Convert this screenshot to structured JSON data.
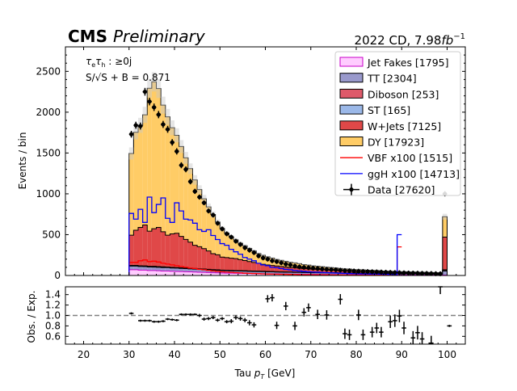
{
  "header": {
    "experiment": "CMS",
    "status": "Preliminary",
    "lumi_prefix": "2022 CD, 7.98",
    "lumi_unit": "fb",
    "lumi_exp": "−1"
  },
  "annotations": {
    "channel": "τ",
    "channel_sub": "e",
    "channel_mid": "τ",
    "channel_sub2": "h",
    "channel_rest": " : ≥0j",
    "significance": "S/√S + B = 0.871"
  },
  "chart_data": [
    {
      "type": "bar",
      "stacked": true,
      "xlabel": "Tau p_T [GeV]",
      "ylabel": "Events / bin",
      "xlim": [
        16,
        104
      ],
      "ylim": [
        0,
        2800
      ],
      "xticks": [
        20,
        30,
        40,
        50,
        60,
        70,
        80,
        90,
        100
      ],
      "yticks": [
        0,
        500,
        1000,
        1500,
        2000,
        2500
      ],
      "bin_edges": [
        20,
        21,
        22,
        23,
        24,
        25,
        26,
        27,
        28,
        29,
        30,
        31,
        32,
        33,
        34,
        35,
        36,
        37,
        38,
        39,
        40,
        41,
        42,
        43,
        44,
        45,
        46,
        47,
        48,
        49,
        50,
        51,
        52,
        53,
        54,
        55,
        56,
        57,
        58,
        59,
        60,
        61,
        62,
        63,
        64,
        65,
        66,
        67,
        68,
        69,
        70,
        71,
        72,
        73,
        74,
        75,
        76,
        77,
        78,
        79,
        80,
        81,
        82,
        83,
        84,
        85,
        86,
        87,
        88,
        89,
        90,
        91,
        92,
        93,
        94,
        95,
        96,
        97,
        98,
        99,
        100
      ],
      "legend_position": "top-right",
      "series": [
        {
          "name": "Jet Fakes",
          "count": "1795",
          "color": "#ffccff",
          "stroke": "#c800c8",
          "values": [
            0,
            0,
            0,
            0,
            0,
            0,
            0,
            0,
            0,
            0,
            70,
            70,
            65,
            65,
            60,
            60,
            58,
            55,
            55,
            52,
            50,
            48,
            46,
            44,
            42,
            40,
            38,
            36,
            34,
            32,
            30,
            29,
            28,
            27,
            26,
            25,
            24,
            23,
            22,
            21,
            20,
            19,
            18,
            17,
            16,
            16,
            15,
            15,
            14,
            14,
            13,
            13,
            12,
            12,
            11,
            11,
            10,
            10,
            10,
            9,
            9,
            9,
            8,
            8,
            8,
            7,
            7,
            7,
            7,
            6,
            6,
            6,
            6,
            5,
            5,
            5,
            5,
            5,
            5,
            5
          ]
        },
        {
          "name": "TT",
          "count": "2304",
          "color": "#9999cc",
          "stroke": "#000000",
          "values": [
            0,
            0,
            0,
            0,
            0,
            0,
            0,
            0,
            0,
            0,
            45,
            45,
            45,
            44,
            44,
            43,
            42,
            42,
            41,
            40,
            40,
            39,
            38,
            37,
            36,
            35,
            34,
            33,
            32,
            31,
            30,
            30,
            29,
            29,
            28,
            28,
            27,
            27,
            26,
            26,
            25,
            25,
            24,
            24,
            23,
            23,
            22,
            22,
            22,
            21,
            21,
            20,
            20,
            20,
            19,
            19,
            18,
            18,
            18,
            17,
            17,
            17,
            16,
            16,
            16,
            15,
            15,
            15,
            14,
            14,
            14,
            13,
            13,
            13,
            12,
            12,
            12,
            11,
            11,
            50
          ]
        },
        {
          "name": "Diboson",
          "count": "253",
          "color": "#de5a6a",
          "stroke": "#000000",
          "values": [
            0,
            0,
            0,
            0,
            0,
            0,
            0,
            0,
            0,
            0,
            5,
            5,
            5,
            5,
            5,
            5,
            5,
            5,
            4,
            4,
            4,
            4,
            4,
            4,
            4,
            4,
            4,
            3,
            3,
            3,
            3,
            3,
            3,
            3,
            3,
            3,
            3,
            3,
            3,
            3,
            2,
            2,
            2,
            2,
            2,
            2,
            2,
            2,
            2,
            2,
            2,
            2,
            2,
            2,
            2,
            2,
            2,
            2,
            2,
            2,
            2,
            2,
            2,
            2,
            2,
            1,
            1,
            1,
            1,
            1,
            1,
            1,
            1,
            1,
            1,
            1,
            1,
            1,
            1,
            10
          ]
        },
        {
          "name": "ST",
          "count": "165",
          "color": "#9bb8e8",
          "stroke": "#000000",
          "values": [
            0,
            0,
            0,
            0,
            0,
            0,
            0,
            0,
            0,
            0,
            4,
            4,
            4,
            4,
            4,
            4,
            4,
            4,
            3,
            3,
            3,
            3,
            3,
            3,
            3,
            3,
            3,
            3,
            3,
            3,
            2,
            2,
            2,
            2,
            2,
            2,
            2,
            2,
            2,
            2,
            2,
            2,
            2,
            2,
            2,
            1,
            1,
            1,
            1,
            1,
            1,
            1,
            1,
            1,
            1,
            1,
            1,
            1,
            1,
            1,
            1,
            1,
            1,
            1,
            1,
            1,
            1,
            1,
            1,
            1,
            1,
            1,
            1,
            1,
            1,
            1,
            1,
            1,
            1,
            5
          ]
        },
        {
          "name": "W+Jets",
          "count": "7125",
          "color": "#e04848",
          "stroke": "#000000",
          "values": [
            0,
            0,
            0,
            0,
            0,
            0,
            0,
            0,
            0,
            0,
            370,
            430,
            470,
            500,
            430,
            460,
            480,
            430,
            390,
            410,
            420,
            385,
            350,
            320,
            285,
            270,
            250,
            225,
            195,
            185,
            160,
            155,
            150,
            145,
            135,
            125,
            115,
            105,
            95,
            85,
            80,
            75,
            70,
            65,
            60,
            55,
            55,
            50,
            45,
            45,
            40,
            40,
            38,
            35,
            33,
            30,
            28,
            26,
            25,
            23,
            22,
            21,
            20,
            19,
            18,
            17,
            16,
            15,
            15,
            14,
            14,
            13,
            12,
            12,
            11,
            11,
            10,
            10,
            10,
            400
          ]
        },
        {
          "name": "DY",
          "count": "17923",
          "color": "#ffcc66",
          "stroke": "#000000",
          "values": [
            0,
            0,
            0,
            0,
            0,
            0,
            0,
            0,
            0,
            0,
            1000,
            1200,
            1250,
            1350,
            1750,
            1800,
            1700,
            1550,
            1450,
            1300,
            1200,
            1100,
            1000,
            900,
            800,
            700,
            610,
            540,
            480,
            400,
            350,
            300,
            260,
            230,
            200,
            180,
            160,
            140,
            120,
            110,
            100,
            90,
            80,
            75,
            70,
            65,
            60,
            55,
            50,
            45,
            40,
            38,
            35,
            32,
            30,
            28,
            26,
            24,
            22,
            20,
            19,
            18,
            17,
            16,
            15,
            14,
            13,
            12,
            11,
            10,
            10,
            9,
            9,
            8,
            8,
            7,
            7,
            6,
            6,
            250
          ]
        },
        {
          "name": "VBF x100",
          "count": "1515",
          "color": "#ff0000",
          "line": true
        },
        {
          "name": "ggH x100",
          "count": "14713",
          "color": "#0000ff",
          "line": true
        },
        {
          "name": "Data",
          "count": "27620",
          "color": "#000000",
          "points": true
        }
      ],
      "data_points": {
        "x": [
          30.5,
          31.5,
          32.5,
          33.5,
          34.5,
          35.5,
          36.5,
          37.5,
          38.5,
          39.5,
          40.5,
          41.5,
          42.5,
          43.5,
          44.5,
          45.5,
          46.5,
          47.5,
          48.5,
          49.5,
          50.5,
          51.5,
          52.5,
          53.5,
          54.5,
          55.5,
          56.5,
          57.5,
          58.5,
          59.5,
          60.5,
          61.5,
          62.5,
          63.5,
          64.5,
          65.5,
          66.5,
          67.5,
          68.5,
          69.5,
          70.5,
          71.5,
          72.5,
          73.5,
          74.5,
          75.5,
          76.5,
          77.5,
          78.5,
          79.5,
          80.5,
          81.5,
          82.5,
          83.5,
          84.5,
          85.5,
          86.5,
          87.5,
          88.5,
          89.5,
          90.5,
          91.5,
          92.5,
          93.5,
          94.5,
          95.5,
          96.5,
          97.5,
          98.5,
          99.5
        ],
        "y": [
          1730,
          1840,
          1830,
          2250,
          2130,
          2060,
          1970,
          1850,
          1790,
          1630,
          1520,
          1350,
          1300,
          1150,
          1030,
          960,
          890,
          790,
          740,
          640,
          570,
          510,
          470,
          420,
          380,
          340,
          310,
          280,
          240,
          215,
          200,
          180,
          170,
          155,
          140,
          130,
          115,
          105,
          100,
          95,
          90,
          85,
          80,
          75,
          72,
          70,
          65,
          60,
          58,
          55,
          52,
          50,
          48,
          46,
          44,
          42,
          40,
          38,
          36,
          34,
          32,
          30,
          29,
          28,
          26,
          25,
          24,
          22,
          21,
          1000
        ]
      },
      "signal_vbf": [
        0,
        0,
        0,
        0,
        0,
        0,
        0,
        0,
        0,
        0,
        160,
        160,
        180,
        190,
        170,
        175,
        165,
        150,
        140,
        130,
        120,
        110,
        100,
        90,
        85,
        75,
        70,
        62,
        55,
        50,
        45,
        42,
        38,
        35,
        32,
        28,
        26,
        24,
        22,
        20,
        18,
        17,
        16,
        15,
        14,
        13,
        12,
        11,
        10,
        10,
        9,
        9,
        8,
        8,
        7,
        7,
        7,
        6,
        6,
        6,
        5,
        5,
        5,
        5,
        4,
        4,
        4,
        4,
        4,
        350
      ],
      "signal_ggh": [
        0,
        0,
        0,
        0,
        0,
        0,
        0,
        0,
        0,
        0,
        760,
        690,
        810,
        650,
        960,
        770,
        870,
        950,
        700,
        650,
        890,
        790,
        690,
        680,
        640,
        560,
        540,
        560,
        490,
        440,
        390,
        370,
        320,
        290,
        260,
        220,
        200,
        180,
        150,
        130,
        120,
        100,
        95,
        85,
        75,
        70,
        60,
        55,
        50,
        45,
        42,
        40,
        37,
        35,
        32,
        30,
        28,
        26,
        24,
        22,
        21,
        20,
        19,
        18,
        17,
        16,
        15,
        14,
        13,
        500
      ],
      "uncertainty_frac": 0.05
    },
    {
      "type": "scatter",
      "xlabel": "Tau p_T [GeV]",
      "ylabel": "Obs. / Exp.",
      "xlim": [
        16,
        104
      ],
      "ylim": [
        0.45,
        1.55
      ],
      "xticks": [
        20,
        30,
        40,
        50,
        60,
        70,
        80,
        90,
        100
      ],
      "yticks": [
        0.6,
        0.8,
        1.0,
        1.2,
        1.4
      ],
      "ytick_labels": [
        "0.6",
        "0.8",
        "1.0",
        "1.2",
        "1.4"
      ],
      "reference_line": 1.0,
      "x": [
        30.5,
        32.5,
        33.5,
        34.5,
        35.5,
        36.5,
        37.5,
        38.5,
        39.5,
        40.5,
        41.5,
        42.5,
        43.5,
        44.5,
        45.5,
        46.5,
        47.5,
        48.5,
        49.5,
        50.5,
        51.5,
        52.5,
        53.5,
        54.5,
        55.5,
        56.5,
        57.5,
        60.5,
        61.5,
        62.5,
        64.5,
        66.5,
        68.5,
        69.5,
        71.5,
        73.5,
        76.5,
        77.5,
        78.5,
        80.5,
        81.5,
        83.5,
        84.5,
        85.5,
        87.5,
        88.5,
        89.5,
        90.5,
        92.5,
        93.5,
        94.5,
        96.5,
        98.5,
        100.5
      ],
      "y": [
        1.04,
        0.9,
        0.9,
        0.9,
        0.88,
        0.88,
        0.89,
        0.93,
        0.92,
        0.91,
        1.02,
        1.02,
        1.02,
        1.02,
        1.0,
        0.93,
        0.94,
        0.96,
        0.91,
        0.94,
        0.88,
        0.89,
        0.96,
        0.94,
        0.91,
        0.86,
        0.82,
        1.32,
        1.34,
        0.81,
        1.18,
        0.8,
        1.06,
        1.15,
        1.02,
        1.01,
        1.31,
        0.65,
        0.63,
        1.01,
        0.63,
        0.68,
        0.76,
        0.68,
        0.88,
        0.9,
        0.99,
        0.76,
        0.57,
        0.67,
        0.55,
        0.47,
        1.55,
        0.8
      ],
      "yerr": [
        0.02,
        0.02,
        0.02,
        0.02,
        0.02,
        0.02,
        0.02,
        0.02,
        0.02,
        0.02,
        0.02,
        0.02,
        0.02,
        0.02,
        0.03,
        0.03,
        0.03,
        0.03,
        0.03,
        0.03,
        0.03,
        0.04,
        0.04,
        0.04,
        0.04,
        0.05,
        0.05,
        0.07,
        0.07,
        0.07,
        0.08,
        0.08,
        0.08,
        0.08,
        0.09,
        0.09,
        0.1,
        0.1,
        0.1,
        0.1,
        0.1,
        0.1,
        0.1,
        0.1,
        0.12,
        0.12,
        0.12,
        0.12,
        0.13,
        0.13,
        0.13,
        0.14,
        0.14,
        0.02
      ]
    }
  ]
}
